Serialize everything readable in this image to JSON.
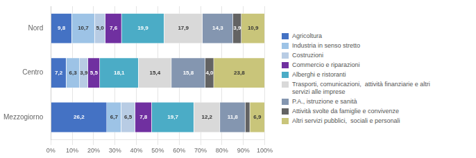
{
  "chart_data": {
    "type": "bar",
    "orientation": "horizontal",
    "stacked": true,
    "categories": [
      "Nord",
      "Centro",
      "Mezzogiorno"
    ],
    "series": [
      {
        "name": "Agricoltura",
        "color": "#4472C4",
        "values": [
          9.8,
          7.2,
          26.2
        ],
        "value_labels": [
          "9,8",
          "7,2",
          "26,2"
        ]
      },
      {
        "name": "Industria in senso stretto",
        "color": "#9DC3E6",
        "values": [
          10.7,
          6.3,
          6.7
        ],
        "value_labels": [
          "10,7",
          "6,3",
          "6,7"
        ]
      },
      {
        "name": "Costruzioni",
        "color": "#B8CCE4",
        "values": [
          5.0,
          3.9,
          6.5
        ],
        "value_labels": [
          "5,0",
          "3,9",
          "6,5"
        ]
      },
      {
        "name": "Commercio e riparazioni",
        "color": "#7030A0",
        "values": [
          7.6,
          5.5,
          7.8
        ],
        "value_labels": [
          "7,6",
          "5,5",
          "7,8"
        ]
      },
      {
        "name": "Alberghi e ristoranti",
        "color": "#4BACC6",
        "values": [
          19.9,
          18.1,
          19.7
        ],
        "value_labels": [
          "19,9",
          "18,1",
          "19,7"
        ]
      },
      {
        "name": "Trasporti, comunicazioni,  attività finanziarie e altri\nservizi alle imprese",
        "color": "#D9D9D9",
        "values": [
          17.9,
          15.4,
          12.2
        ],
        "value_labels": [
          "17,9",
          "15,4",
          "12,2"
        ]
      },
      {
        "name": "P.A., istruzione e sanità",
        "color": "#8496B0",
        "values": [
          14.3,
          15.8,
          11.8
        ],
        "value_labels": [
          "14,3",
          "15,8",
          "11,8"
        ]
      },
      {
        "name": "Attività svolte da famiglie e convivenze",
        "color": "#636363",
        "values": [
          3.9,
          4.0,
          2.2
        ],
        "value_labels": [
          "3,9",
          "4,0",
          null
        ]
      },
      {
        "name": "Altri servizi pubblici,  sociali e personali",
        "color": "#C9C57A",
        "values": [
          10.9,
          23.8,
          6.9
        ],
        "value_labels": [
          "10,9",
          "23,8",
          "6,9"
        ]
      }
    ],
    "xlim": [
      0,
      100
    ],
    "xticks": [
      {
        "value": 0,
        "label": "0%"
      },
      {
        "value": 10,
        "label": "10%"
      },
      {
        "value": 20,
        "label": "20%"
      },
      {
        "value": 30,
        "label": "30%"
      },
      {
        "value": 40,
        "label": "40%"
      },
      {
        "value": 50,
        "label": "50%"
      },
      {
        "value": 60,
        "label": "60%"
      },
      {
        "value": 70,
        "label": "70%"
      },
      {
        "value": 80,
        "label": "80%"
      },
      {
        "value": 90,
        "label": "90%"
      },
      {
        "value": 100,
        "label": "100%"
      }
    ],
    "grid": true,
    "legend": "right",
    "data_labels": true
  }
}
